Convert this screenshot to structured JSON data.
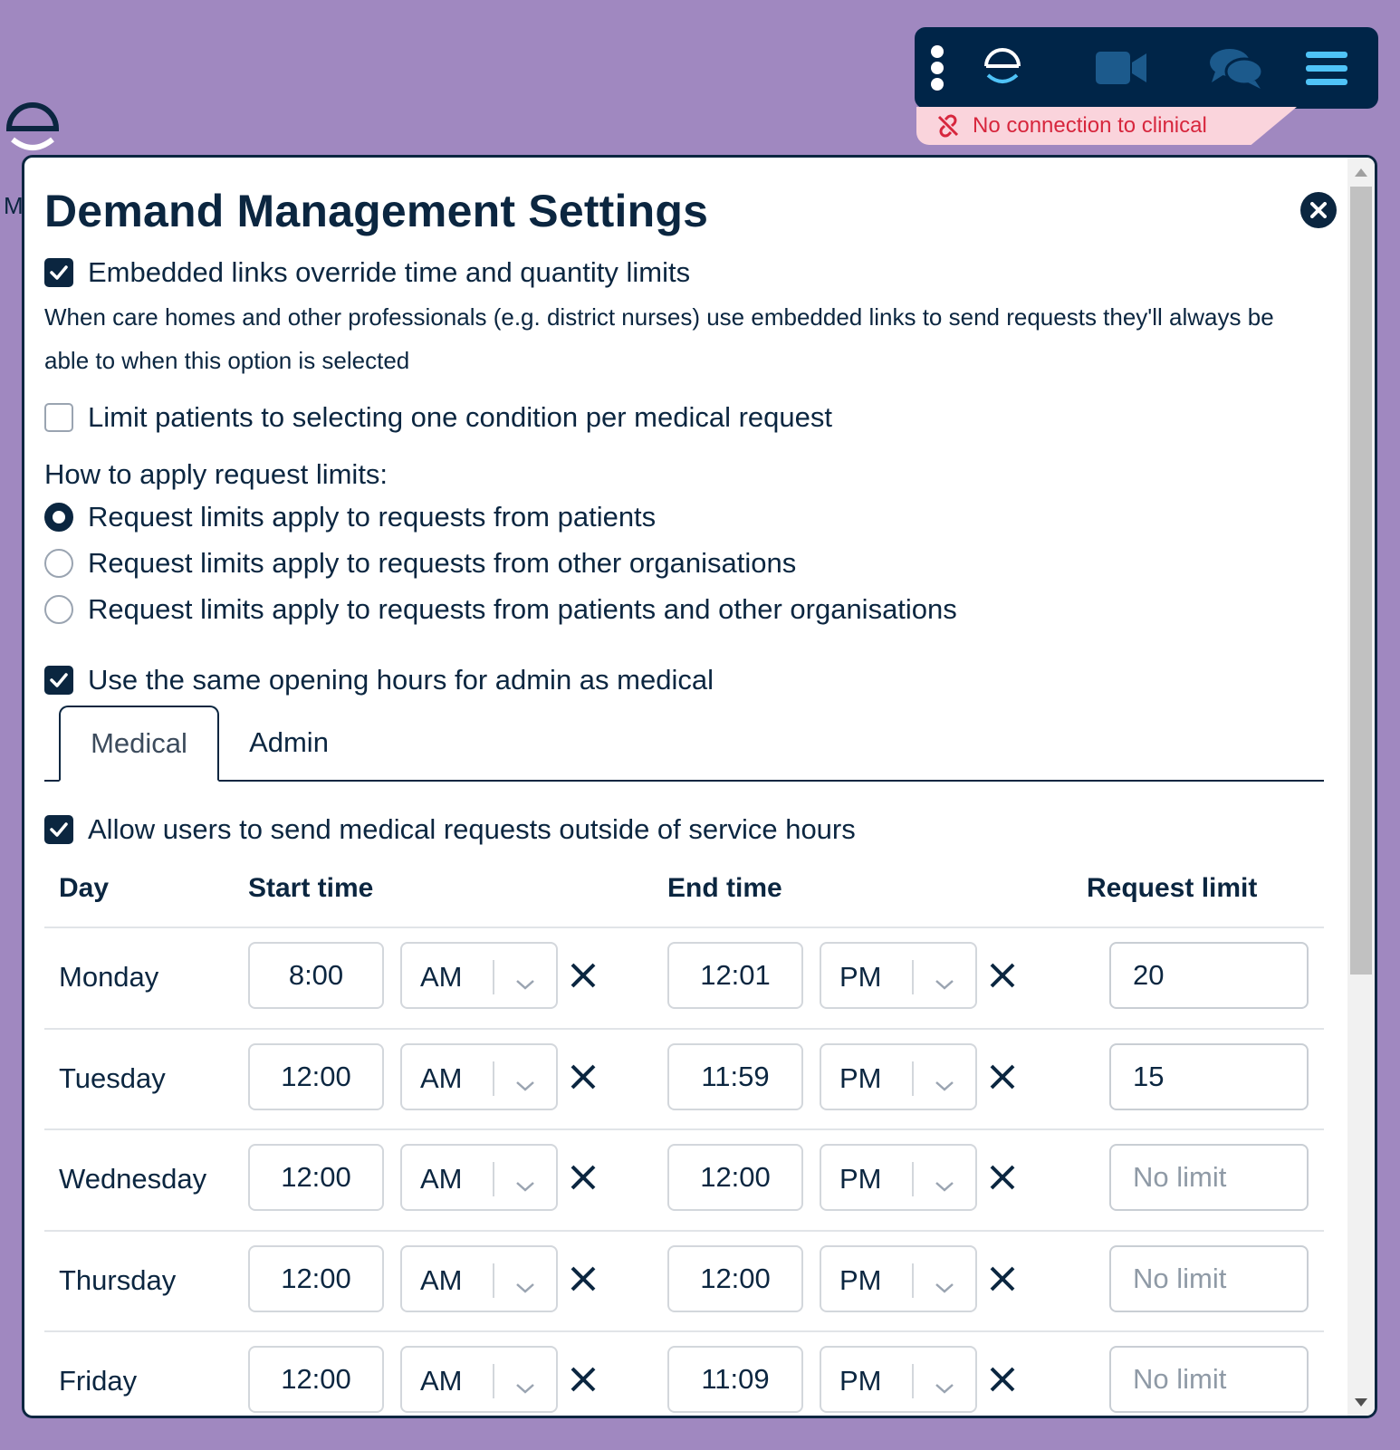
{
  "toolbar": {
    "items": [
      "more-options",
      "accurx-logo",
      "video-call",
      "chat",
      "menu"
    ]
  },
  "connection_warning": "No connection to clinical",
  "background_letter": "M",
  "modal": {
    "title": "Demand Management Settings",
    "embedded_links": {
      "label": "Embedded links override time and quantity limits",
      "checked": true
    },
    "description": "When care homes and other professionals (e.g. district nurses) use embedded links to send requests they'll always be able to when this option is selected",
    "limit_conditions": {
      "label": "Limit patients to selecting one condition per medical request",
      "checked": false
    },
    "apply_limits_label": "How to apply request limits:",
    "radio_options": [
      {
        "label": "Request limits apply to requests from patients",
        "selected": true
      },
      {
        "label": "Request limits apply to requests from other organisations",
        "selected": false
      },
      {
        "label": "Request limits apply to requests from patients and other organisations",
        "selected": false
      }
    ],
    "same_hours": {
      "label": "Use the same opening hours for admin as medical",
      "checked": true
    },
    "tabs": [
      {
        "label": "Medical",
        "active": true
      },
      {
        "label": "Admin",
        "active": false
      }
    ],
    "allow_outside": {
      "label": "Allow users to send medical requests outside of service hours",
      "checked": true
    },
    "table": {
      "headers": {
        "day": "Day",
        "start": "Start time",
        "end": "End time",
        "limit": "Request limit"
      },
      "limit_placeholder": "No limit",
      "rows": [
        {
          "day": "Monday",
          "start": "8:00",
          "start_ampm": "AM",
          "end": "12:01",
          "end_ampm": "PM",
          "limit": "20"
        },
        {
          "day": "Tuesday",
          "start": "12:00",
          "start_ampm": "AM",
          "end": "11:59",
          "end_ampm": "PM",
          "limit": "15"
        },
        {
          "day": "Wednesday",
          "start": "12:00",
          "start_ampm": "AM",
          "end": "12:00",
          "end_ampm": "PM",
          "limit": ""
        },
        {
          "day": "Thursday",
          "start": "12:00",
          "start_ampm": "AM",
          "end": "12:00",
          "end_ampm": "PM",
          "limit": ""
        },
        {
          "day": "Friday",
          "start": "12:00",
          "start_ampm": "AM",
          "end": "11:09",
          "end_ampm": "PM",
          "limit": ""
        }
      ]
    }
  },
  "colors": {
    "page_bg": "#a088c0",
    "navy": "#0b2640",
    "toolbar": "#002548",
    "accent_blue": "#4fc3f7",
    "warn_red": "#d7263d",
    "warn_bg": "#fad4dc"
  }
}
